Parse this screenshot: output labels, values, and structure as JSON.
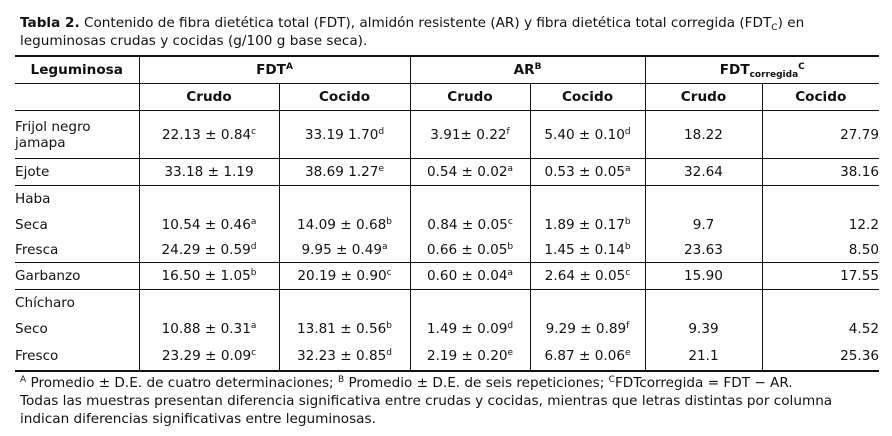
{
  "caption": {
    "title": "Tabla 2.",
    "text_a": " Contenido de fibra dietética total (FDT), almidón resistente (AR) y fibra dietética total corregida (FDT",
    "text_sub": "C",
    "text_b": ") en leguminosas crudas y cocidas (g/100 g base seca)."
  },
  "headers": {
    "legume": "Leguminosa",
    "fdt": "FDT",
    "fdt_sup": "A",
    "ar": "AR",
    "ar_sup": "B",
    "fdtc": "FDT",
    "fdtc_sub": "corregida",
    "fdtc_sup": "C",
    "crudo": "Crudo",
    "cocido": "Cocido"
  },
  "rows": [
    {
      "name": "Frijol negro jamapa",
      "fdt_crudo": "22.13 ± 0.84",
      "fdt_crudo_sup": "c",
      "fdt_cocido": "33.19  1.70",
      "fdt_cocido_sup": "d",
      "ar_crudo": "3.91± 0.22",
      "ar_crudo_sup": "f",
      "ar_cocido": "5.40 ± 0.10",
      "ar_cocido_sup": "d",
      "fdtc_crudo": "18.22",
      "fdtc_cocido": "27.79"
    },
    {
      "name": "Ejote",
      "fdt_crudo": "33.18  ± 1.19",
      "fdt_crudo_sup": "",
      "fdt_cocido": "38.69  1.27",
      "fdt_cocido_sup": "e",
      "ar_crudo": "0.54 ± 0.02",
      "ar_crudo_sup": "a",
      "ar_cocido": "0.53 ± 0.05",
      "ar_cocido_sup": "a",
      "fdtc_crudo": "32.64",
      "fdtc_cocido": "38.16"
    },
    {
      "group": "Haba"
    },
    {
      "name": "Seca",
      "fdt_crudo": "10.54 ± 0.46",
      "fdt_crudo_sup": "a",
      "fdt_cocido": "14.09 ± 0.68",
      "fdt_cocido_sup": "b",
      "ar_crudo": "0.84 ± 0.05",
      "ar_crudo_sup": "c",
      "ar_cocido": "1.89 ± 0.17",
      "ar_cocido_sup": "b",
      "fdtc_crudo": "9.7",
      "fdtc_cocido": "12.2"
    },
    {
      "name": "Fresca",
      "fdt_crudo": "24.29 ± 0.59",
      "fdt_crudo_sup": "d",
      "fdt_cocido": "9.95 ± 0.49",
      "fdt_cocido_sup": "a",
      "ar_crudo": "0.66 ± 0.05",
      "ar_crudo_sup": "b",
      "ar_cocido": "1.45 ± 0.14",
      "ar_cocido_sup": "b",
      "fdtc_crudo": "23.63",
      "fdtc_cocido": "8.50"
    },
    {
      "name": "Garbanzo",
      "fdt_crudo": "16.50 ± 1.05",
      "fdt_crudo_sup": "b",
      "fdt_cocido": "20.19 ± 0.90",
      "fdt_cocido_sup": "c",
      "ar_crudo": "0.60 ± 0.04",
      "ar_crudo_sup": "a",
      "ar_cocido": "2.64 ± 0.05",
      "ar_cocido_sup": "c",
      "fdtc_crudo": "15.90",
      "fdtc_cocido": "17.55"
    },
    {
      "group": "Chícharo"
    },
    {
      "name": "Seco",
      "fdt_crudo": "10.88 ± 0.31",
      "fdt_crudo_sup": "a",
      "fdt_cocido": "13.81 ± 0.56",
      "fdt_cocido_sup": "b",
      "ar_crudo": "1.49 ± 0.09",
      "ar_crudo_sup": "d",
      "ar_cocido": "9.29 ± 0.89",
      "ar_cocido_sup": "f",
      "fdtc_crudo": "9.39",
      "fdtc_cocido": "4.52"
    },
    {
      "name": "Fresco",
      "fdt_crudo": "23.29 ± 0.09",
      "fdt_crudo_sup": "c",
      "fdt_cocido": "32.23 ± 0.85",
      "fdt_cocido_sup": "d",
      "ar_crudo": "2.19 ± 0.20",
      "ar_crudo_sup": "e",
      "ar_cocido": "6.87 ± 0.06",
      "ar_cocido_sup": "e",
      "fdtc_crudo": "21.1",
      "fdtc_cocido": "25.36"
    }
  ],
  "notes": {
    "a_sup": "A",
    "a_text": " Promedio ± D.E. de cuatro determinaciones; ",
    "b_sup": "B",
    "b_text": " Promedio ± D.E. de seis repeticiones; ",
    "c_sup": "C",
    "c_text": "FDTcorregida = FDT − AR.",
    "line2": "Todas las muestras presentan diferencia significativa entre crudas y cocidas, mientras que letras distintas por columna indican diferencias significativas entre leguminosas."
  }
}
